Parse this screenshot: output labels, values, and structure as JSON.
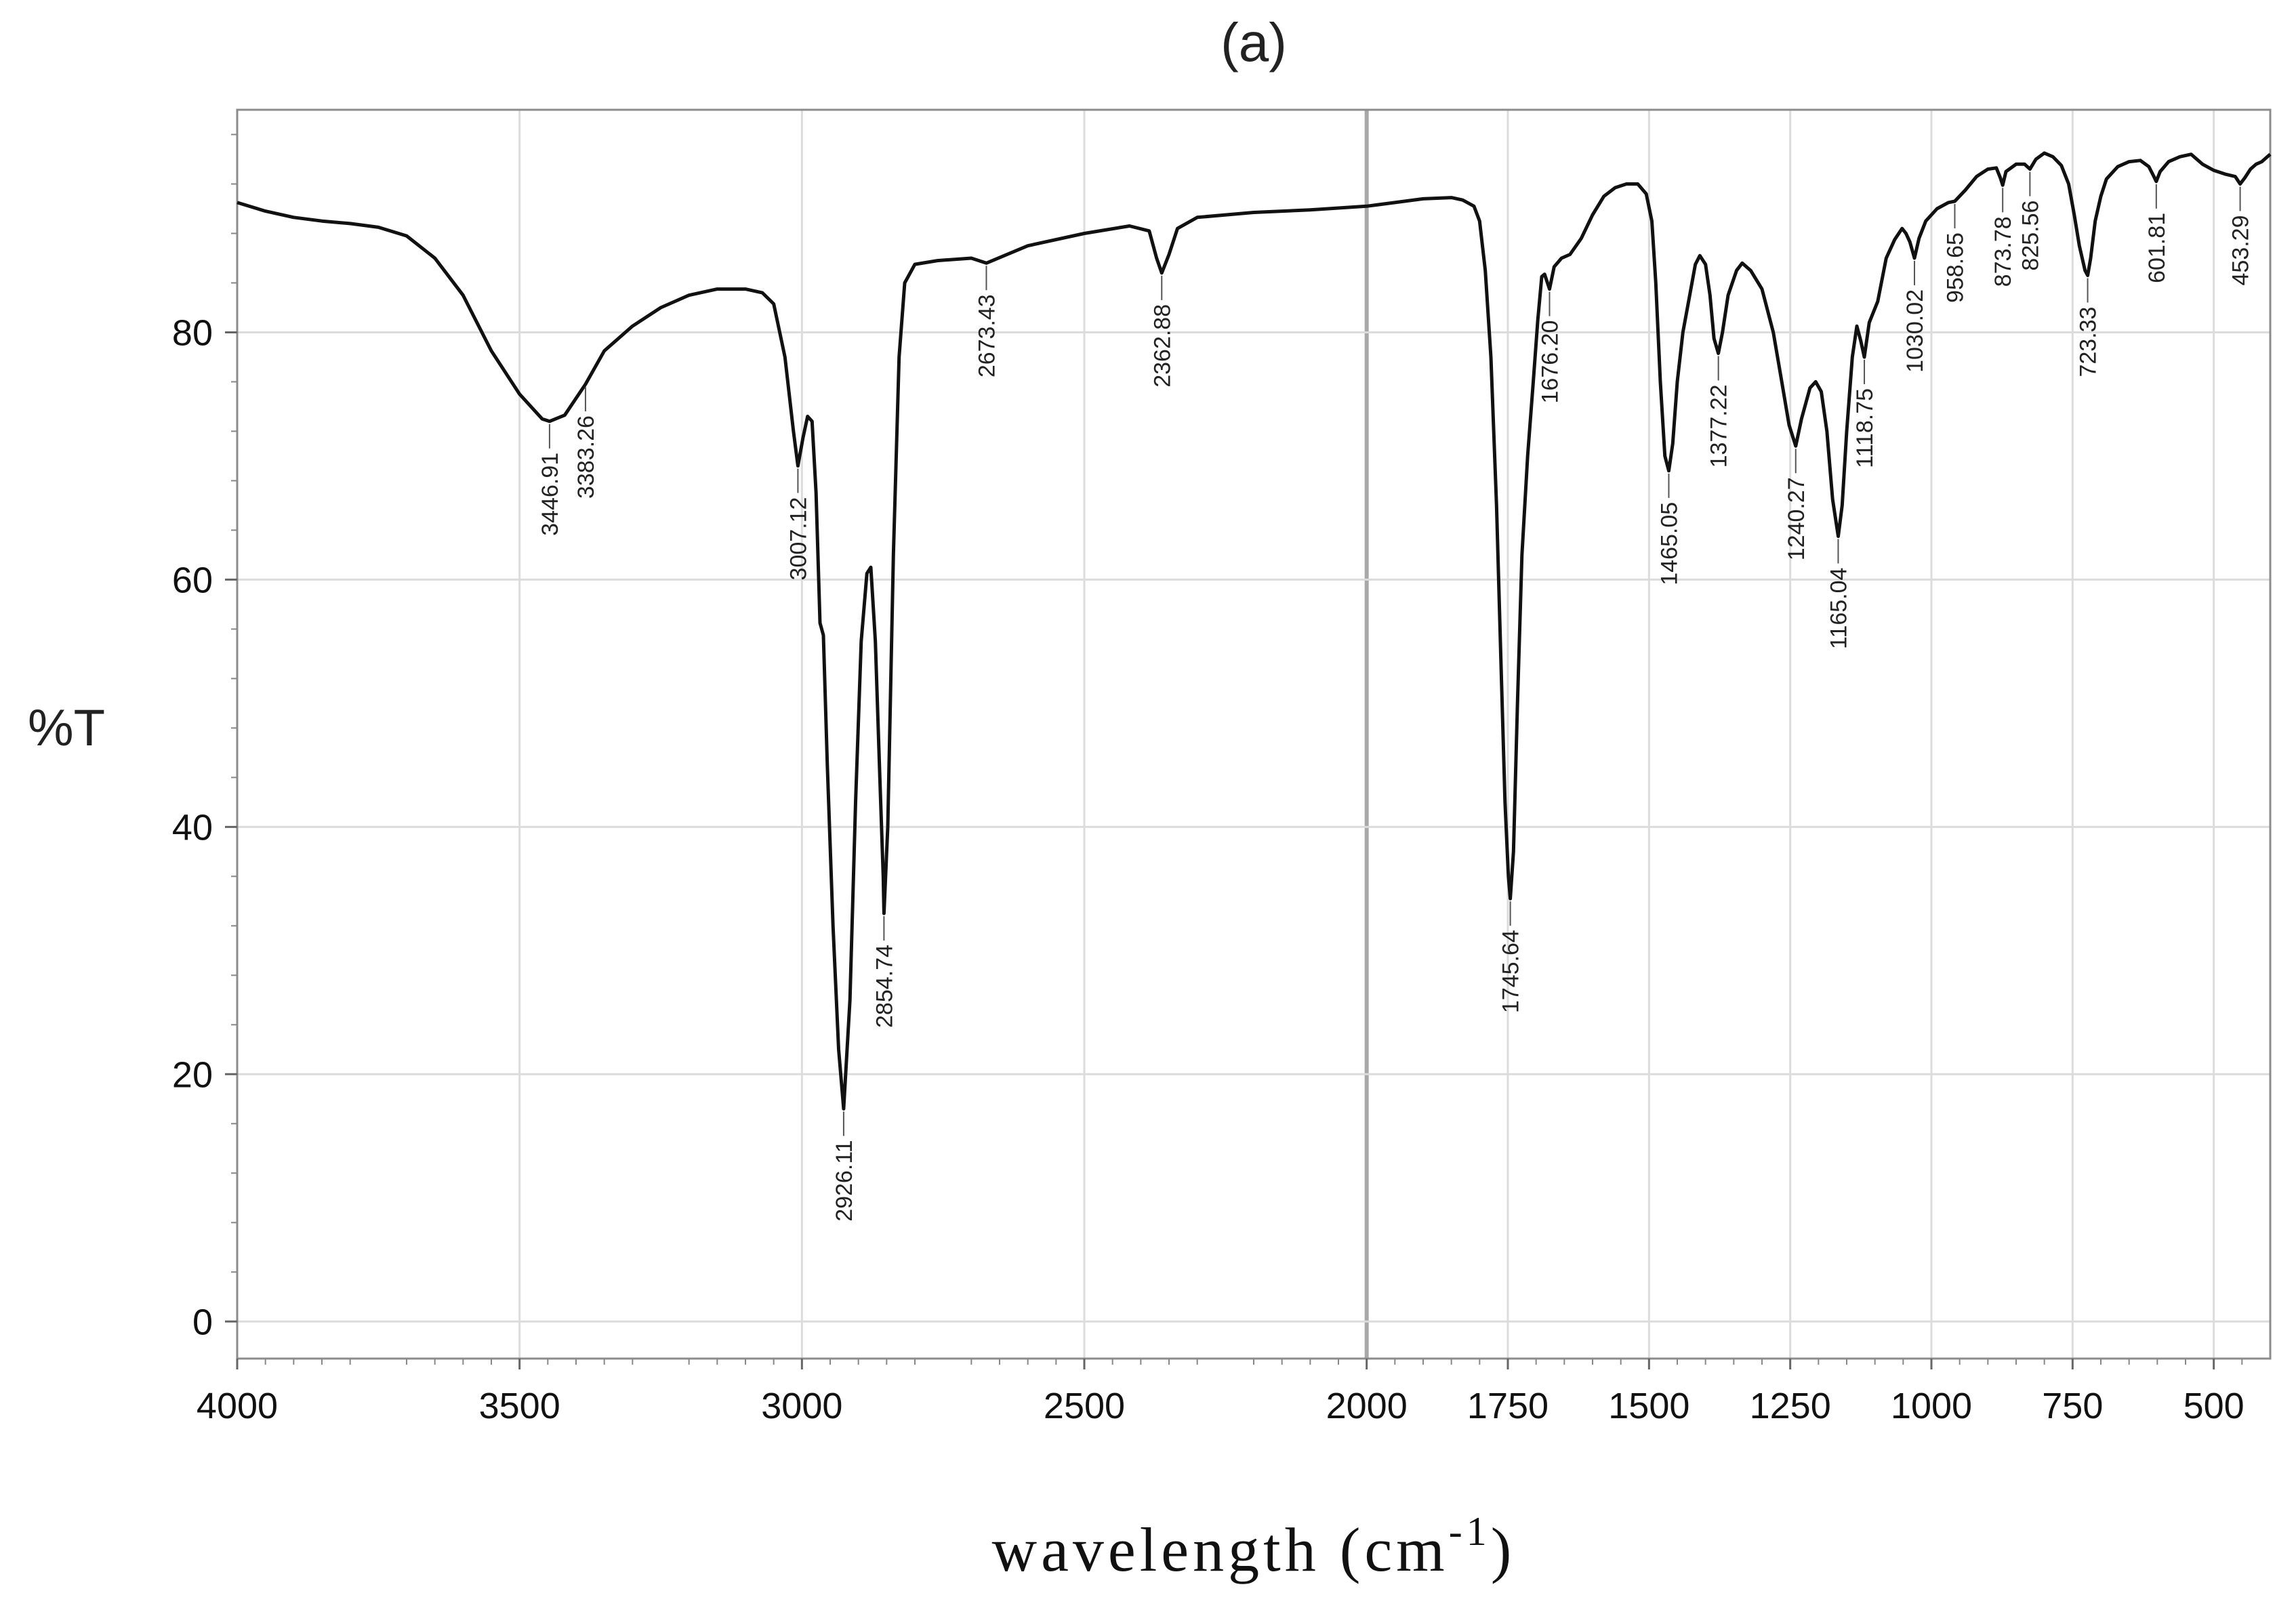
{
  "chart_data": {
    "type": "line",
    "title": "(a)",
    "xlabel": "wavelength (cm",
    "xlabel_superscript": "-1",
    "xlabel_close": ")",
    "ylabel": "%T",
    "xlim": [
      4000,
      400
    ],
    "ylim": [
      -3,
      98
    ],
    "x_ticks": [
      {
        "value": 4000,
        "label": "4000"
      },
      {
        "value": 3500,
        "label": "3500"
      },
      {
        "value": 3000,
        "label": "3000"
      },
      {
        "value": 2500,
        "label": "2500"
      },
      {
        "value": 2000,
        "label": "2000"
      },
      {
        "value": 1750,
        "label": "1750"
      },
      {
        "value": 1500,
        "label": "1500"
      },
      {
        "value": 1250,
        "label": "1250"
      },
      {
        "value": 1000,
        "label": "1000"
      },
      {
        "value": 750,
        "label": "750"
      },
      {
        "value": 500,
        "label": "500"
      }
    ],
    "y_ticks": [
      {
        "value": 0,
        "label": "0"
      },
      {
        "value": 20,
        "label": "20"
      },
      {
        "value": 40,
        "label": "40"
      },
      {
        "value": 60,
        "label": "60"
      },
      {
        "value": 80,
        "label": "80"
      }
    ],
    "grid": true,
    "series": [
      {
        "name": "spectrum",
        "color": "#111111",
        "points": [
          [
            4000,
            90.5
          ],
          [
            3950,
            89.8
          ],
          [
            3900,
            89.3
          ],
          [
            3850,
            89
          ],
          [
            3800,
            88.8
          ],
          [
            3750,
            88.5
          ],
          [
            3700,
            87.8
          ],
          [
            3650,
            86
          ],
          [
            3600,
            83
          ],
          [
            3550,
            78.5
          ],
          [
            3500,
            75
          ],
          [
            3460,
            73
          ],
          [
            3446.91,
            72.8
          ],
          [
            3420,
            73.3
          ],
          [
            3383.26,
            75.8
          ],
          [
            3350,
            78.5
          ],
          [
            3300,
            80.5
          ],
          [
            3250,
            82
          ],
          [
            3200,
            83
          ],
          [
            3150,
            83.5
          ],
          [
            3100,
            83.5
          ],
          [
            3070,
            83.2
          ],
          [
            3050,
            82.3
          ],
          [
            3030,
            78
          ],
          [
            3015,
            72
          ],
          [
            3007.12,
            69.2
          ],
          [
            2998,
            71.5
          ],
          [
            2990,
            73.2
          ],
          [
            2982,
            72.8
          ],
          [
            2975,
            67
          ],
          [
            2968,
            56.5
          ],
          [
            2962,
            55.5
          ],
          [
            2955,
            45
          ],
          [
            2945,
            32
          ],
          [
            2935,
            22
          ],
          [
            2926.11,
            17.2
          ],
          [
            2915,
            26
          ],
          [
            2905,
            42
          ],
          [
            2895,
            55
          ],
          [
            2885,
            60.5
          ],
          [
            2878,
            61
          ],
          [
            2870,
            55
          ],
          [
            2862,
            44
          ],
          [
            2856,
            36
          ],
          [
            2854.74,
            33
          ],
          [
            2848,
            40
          ],
          [
            2838,
            62
          ],
          [
            2828,
            78
          ],
          [
            2818,
            84
          ],
          [
            2800,
            85.5
          ],
          [
            2760,
            85.8
          ],
          [
            2700,
            86
          ],
          [
            2673.43,
            85.6
          ],
          [
            2600,
            87
          ],
          [
            2500,
            88
          ],
          [
            2420,
            88.6
          ],
          [
            2385,
            88.2
          ],
          [
            2372,
            86
          ],
          [
            2362.88,
            84.8
          ],
          [
            2350,
            86.3
          ],
          [
            2335,
            88.4
          ],
          [
            2300,
            89.3
          ],
          [
            2200,
            89.7
          ],
          [
            2100,
            89.9
          ],
          [
            2000,
            90.2
          ],
          [
            1950,
            90.5
          ],
          [
            1900,
            90.8
          ],
          [
            1850,
            90.9
          ],
          [
            1830,
            90.7
          ],
          [
            1810,
            90.2
          ],
          [
            1800,
            89
          ],
          [
            1790,
            85
          ],
          [
            1780,
            78
          ],
          [
            1770,
            66
          ],
          [
            1762,
            53
          ],
          [
            1755,
            42
          ],
          [
            1749,
            36
          ],
          [
            1745.64,
            34.2
          ],
          [
            1740,
            38
          ],
          [
            1733,
            50
          ],
          [
            1725,
            62
          ],
          [
            1715,
            70
          ],
          [
            1705,
            76
          ],
          [
            1697,
            81
          ],
          [
            1690,
            84.5
          ],
          [
            1685,
            84.7
          ],
          [
            1676.2,
            83.5
          ],
          [
            1668,
            85.3
          ],
          [
            1655,
            86
          ],
          [
            1640,
            86.3
          ],
          [
            1620,
            87.6
          ],
          [
            1600,
            89.5
          ],
          [
            1580,
            91
          ],
          [
            1560,
            91.7
          ],
          [
            1540,
            92
          ],
          [
            1520,
            92
          ],
          [
            1505,
            91.2
          ],
          [
            1495,
            89
          ],
          [
            1488,
            84
          ],
          [
            1480,
            76
          ],
          [
            1472,
            70
          ],
          [
            1465.05,
            68.8
          ],
          [
            1458,
            71
          ],
          [
            1450,
            76
          ],
          [
            1440,
            80
          ],
          [
            1430,
            82.5
          ],
          [
            1418,
            85.5
          ],
          [
            1410,
            86.2
          ],
          [
            1400,
            85.5
          ],
          [
            1392,
            83
          ],
          [
            1385,
            79.5
          ],
          [
            1377.22,
            78.3
          ],
          [
            1370,
            80
          ],
          [
            1360,
            83
          ],
          [
            1345,
            85
          ],
          [
            1335,
            85.6
          ],
          [
            1320,
            85
          ],
          [
            1300,
            83.5
          ],
          [
            1280,
            80
          ],
          [
            1265,
            76
          ],
          [
            1252,
            72.5
          ],
          [
            1240.27,
            70.8
          ],
          [
            1230,
            73
          ],
          [
            1215,
            75.5
          ],
          [
            1205,
            76
          ],
          [
            1195,
            75.2
          ],
          [
            1185,
            72
          ],
          [
            1175,
            66.5
          ],
          [
            1165.04,
            63.5
          ],
          [
            1158,
            66
          ],
          [
            1150,
            72
          ],
          [
            1140,
            78
          ],
          [
            1132,
            80.5
          ],
          [
            1125,
            79.3
          ],
          [
            1118.75,
            78
          ],
          [
            1110,
            80.8
          ],
          [
            1095,
            82.5
          ],
          [
            1080,
            86
          ],
          [
            1065,
            87.5
          ],
          [
            1052,
            88.4
          ],
          [
            1045,
            88
          ],
          [
            1038,
            87.3
          ],
          [
            1030.02,
            86
          ],
          [
            1022,
            87.6
          ],
          [
            1010,
            89
          ],
          [
            990,
            90
          ],
          [
            970,
            90.5
          ],
          [
            958.65,
            90.6
          ],
          [
            940,
            91.5
          ],
          [
            920,
            92.6
          ],
          [
            900,
            93.2
          ],
          [
            885,
            93.3
          ],
          [
            878,
            92.5
          ],
          [
            873.78,
            91.9
          ],
          [
            868,
            93
          ],
          [
            850,
            93.6
          ],
          [
            835,
            93.6
          ],
          [
            825.56,
            93.2
          ],
          [
            815,
            94
          ],
          [
            800,
            94.5
          ],
          [
            785,
            94.2
          ],
          [
            770,
            93.5
          ],
          [
            757,
            92
          ],
          [
            747,
            89.5
          ],
          [
            738,
            87
          ],
          [
            728,
            85
          ],
          [
            723.33,
            84.6
          ],
          [
            718,
            86
          ],
          [
            710,
            89
          ],
          [
            700,
            91
          ],
          [
            690,
            92.4
          ],
          [
            670,
            93.4
          ],
          [
            650,
            93.8
          ],
          [
            630,
            93.9
          ],
          [
            615,
            93.4
          ],
          [
            606,
            92.6
          ],
          [
            601.81,
            92.2
          ],
          [
            595,
            93
          ],
          [
            580,
            93.8
          ],
          [
            560,
            94.2
          ],
          [
            540,
            94.4
          ],
          [
            520,
            93.6
          ],
          [
            500,
            93.1
          ],
          [
            480,
            92.8
          ],
          [
            462,
            92.6
          ],
          [
            453.29,
            92
          ],
          [
            445,
            92.5
          ],
          [
            435,
            93.2
          ],
          [
            425,
            93.6
          ],
          [
            415,
            93.8
          ],
          [
            405,
            94.2
          ],
          [
            400,
            94.4
          ]
        ]
      }
    ],
    "peak_labels": [
      {
        "x": 3446.91,
        "y": 72.8,
        "label": "3446.91",
        "side": "below"
      },
      {
        "x": 3383.26,
        "y": 75.8,
        "label": "3383.26",
        "side": "below"
      },
      {
        "x": 3007.12,
        "y": 69.2,
        "label": "3007.12",
        "side": "below"
      },
      {
        "x": 2926.11,
        "y": 17.2,
        "label": "2926.11",
        "side": "below"
      },
      {
        "x": 2854.74,
        "y": 33,
        "label": "2854.74",
        "side": "below"
      },
      {
        "x": 2673.43,
        "y": 85.6,
        "label": "2673.43",
        "side": "below"
      },
      {
        "x": 2362.88,
        "y": 84.8,
        "label": "2362.88",
        "side": "below"
      },
      {
        "x": 1745.64,
        "y": 34.2,
        "label": "1745.64",
        "side": "below"
      },
      {
        "x": 1676.2,
        "y": 83.5,
        "label": "1676.20",
        "side": "below"
      },
      {
        "x": 1465.05,
        "y": 68.8,
        "label": "1465.05",
        "side": "below"
      },
      {
        "x": 1377.22,
        "y": 78.3,
        "label": "1377.22",
        "side": "below"
      },
      {
        "x": 1240.27,
        "y": 70.8,
        "label": "1240.27",
        "side": "below"
      },
      {
        "x": 1165.04,
        "y": 63.5,
        "label": "1165.04",
        "side": "below"
      },
      {
        "x": 1118.75,
        "y": 78,
        "label": "1118.75",
        "side": "below"
      },
      {
        "x": 1030.02,
        "y": 86,
        "label": "1030.02",
        "side": "below"
      },
      {
        "x": 958.65,
        "y": 90.6,
        "label": "958.65",
        "side": "below"
      },
      {
        "x": 873.78,
        "y": 91.9,
        "label": "873.78",
        "side": "below"
      },
      {
        "x": 825.56,
        "y": 93.2,
        "label": "825.56",
        "side": "below"
      },
      {
        "x": 723.33,
        "y": 84.6,
        "label": "723.33",
        "side": "below"
      },
      {
        "x": 601.81,
        "y": 92.2,
        "label": "601.81",
        "side": "below"
      },
      {
        "x": 453.29,
        "y": 92,
        "label": "453.29",
        "side": "below"
      }
    ]
  }
}
